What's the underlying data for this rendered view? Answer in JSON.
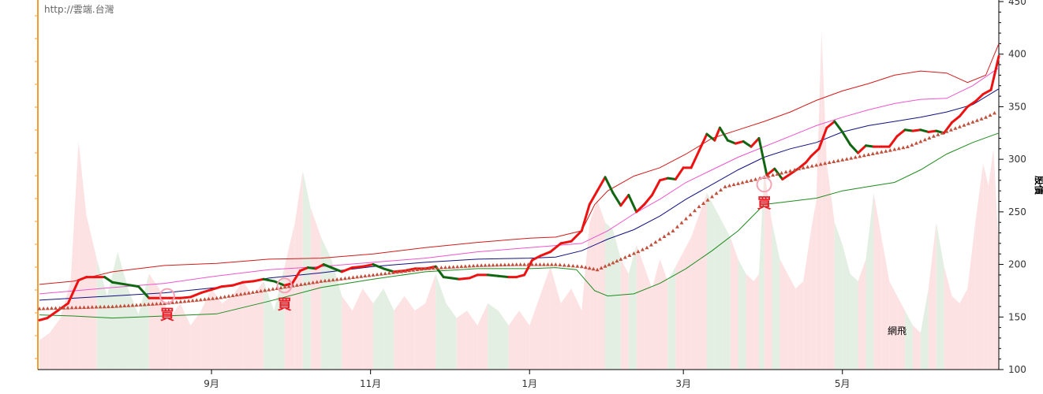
{
  "watermark": "http://雲端.台灣",
  "chart_data": {
    "type": "line",
    "ylabel": "股價",
    "ylim": [
      100,
      450
    ],
    "yticks": [
      100,
      150,
      200,
      250,
      300,
      350,
      400,
      450
    ],
    "xticks": [
      {
        "label": "9月",
        "x": 38
      },
      {
        "label": "11月",
        "x": 99
      },
      {
        "label": "1月",
        "x": 160
      },
      {
        "label": "3月",
        "x": 219
      },
      {
        "label": "5月",
        "x": 280
      }
    ],
    "xlim": [
      -28,
      340
    ],
    "annotation": "網飛",
    "buy_signals": [
      {
        "label": "買",
        "x": 21,
        "y": 170
      },
      {
        "label": "買",
        "x": 66,
        "y": 180
      },
      {
        "label": "買",
        "x": 250,
        "y": 276
      }
    ],
    "price": [
      [
        -28,
        147
      ],
      [
        -25,
        149
      ],
      [
        -21,
        156
      ],
      [
        -17,
        163
      ],
      [
        -13,
        185
      ],
      [
        -10,
        188
      ],
      [
        -7,
        188
      ],
      [
        -3,
        188
      ],
      [
        0,
        183
      ],
      [
        5,
        181
      ],
      [
        10,
        179
      ],
      [
        14,
        168
      ],
      [
        18,
        168
      ],
      [
        22,
        168
      ],
      [
        26,
        168
      ],
      [
        30,
        169
      ],
      [
        34,
        173
      ],
      [
        38,
        176
      ],
      [
        42,
        179
      ],
      [
        46,
        180
      ],
      [
        50,
        183
      ],
      [
        54,
        184
      ],
      [
        58,
        186
      ],
      [
        62,
        184
      ],
      [
        66,
        180
      ],
      [
        69,
        182
      ],
      [
        72,
        194
      ],
      [
        75,
        197
      ],
      [
        78,
        196
      ],
      [
        81,
        200
      ],
      [
        84,
        197
      ],
      [
        88,
        193
      ],
      [
        92,
        197
      ],
      [
        96,
        198
      ],
      [
        100,
        200
      ],
      [
        104,
        196
      ],
      [
        108,
        193
      ],
      [
        112,
        194
      ],
      [
        116,
        196
      ],
      [
        120,
        196
      ],
      [
        124,
        198
      ],
      [
        127,
        188
      ],
      [
        130,
        187
      ],
      [
        133,
        186
      ],
      [
        137,
        187
      ],
      [
        140,
        190
      ],
      [
        144,
        190
      ],
      [
        148,
        189
      ],
      [
        152,
        188
      ],
      [
        155,
        188
      ],
      [
        158,
        190
      ],
      [
        161,
        204
      ],
      [
        164,
        208
      ],
      [
        168,
        212
      ],
      [
        172,
        220
      ],
      [
        176,
        222
      ],
      [
        180,
        232
      ],
      [
        183,
        257
      ],
      [
        186,
        270
      ],
      [
        189,
        283
      ],
      [
        192,
        268
      ],
      [
        195,
        256
      ],
      [
        198,
        266
      ],
      [
        201,
        250
      ],
      [
        204,
        257
      ],
      [
        207,
        266
      ],
      [
        210,
        280
      ],
      [
        213,
        282
      ],
      [
        216,
        281
      ],
      [
        219,
        292
      ],
      [
        222,
        292
      ],
      [
        225,
        308
      ],
      [
        228,
        324
      ],
      [
        231,
        318
      ],
      [
        233,
        330
      ],
      [
        236,
        318
      ],
      [
        239,
        315
      ],
      [
        242,
        317
      ],
      [
        245,
        312
      ],
      [
        248,
        320
      ],
      [
        251,
        285
      ],
      [
        254,
        291
      ],
      [
        257,
        281
      ],
      [
        260,
        286
      ],
      [
        263,
        291
      ],
      [
        266,
        297
      ],
      [
        268,
        303
      ],
      [
        271,
        310
      ],
      [
        274,
        330
      ],
      [
        277,
        336
      ],
      [
        280,
        326
      ],
      [
        283,
        314
      ],
      [
        286,
        306
      ],
      [
        289,
        313
      ],
      [
        292,
        312
      ],
      [
        295,
        312
      ],
      [
        298,
        312
      ],
      [
        301,
        322
      ],
      [
        304,
        328
      ],
      [
        307,
        327
      ],
      [
        310,
        328
      ],
      [
        313,
        326
      ],
      [
        316,
        327
      ],
      [
        319,
        325
      ],
      [
        322,
        335
      ],
      [
        325,
        341
      ],
      [
        328,
        350
      ],
      [
        331,
        355
      ],
      [
        334,
        362
      ],
      [
        337,
        366
      ],
      [
        340,
        398
      ]
    ],
    "upper_band": [
      [
        -28,
        181
      ],
      [
        -15,
        184
      ],
      [
        0,
        193
      ],
      [
        20,
        199
      ],
      [
        40,
        201
      ],
      [
        60,
        205
      ],
      [
        80,
        206
      ],
      [
        100,
        210
      ],
      [
        120,
        216
      ],
      [
        140,
        221
      ],
      [
        160,
        225
      ],
      [
        170,
        226
      ],
      [
        180,
        232
      ],
      [
        185,
        257
      ],
      [
        190,
        270
      ],
      [
        200,
        284
      ],
      [
        210,
        292
      ],
      [
        220,
        305
      ],
      [
        230,
        320
      ],
      [
        240,
        328
      ],
      [
        250,
        336
      ],
      [
        260,
        345
      ],
      [
        270,
        356
      ],
      [
        280,
        365
      ],
      [
        290,
        372
      ],
      [
        300,
        380
      ],
      [
        310,
        384
      ],
      [
        320,
        382
      ],
      [
        328,
        373
      ],
      [
        335,
        380
      ],
      [
        340,
        410
      ]
    ],
    "mid_pink": [
      [
        -28,
        172
      ],
      [
        0,
        178
      ],
      [
        20,
        182
      ],
      [
        40,
        189
      ],
      [
        60,
        195
      ],
      [
        80,
        198
      ],
      [
        100,
        202
      ],
      [
        120,
        206
      ],
      [
        140,
        212
      ],
      [
        160,
        216
      ],
      [
        170,
        218
      ],
      [
        180,
        220
      ],
      [
        190,
        232
      ],
      [
        200,
        248
      ],
      [
        210,
        262
      ],
      [
        220,
        278
      ],
      [
        230,
        290
      ],
      [
        240,
        302
      ],
      [
        250,
        312
      ],
      [
        260,
        322
      ],
      [
        270,
        332
      ],
      [
        280,
        340
      ],
      [
        290,
        347
      ],
      [
        300,
        353
      ],
      [
        310,
        357
      ],
      [
        320,
        358
      ],
      [
        330,
        370
      ],
      [
        340,
        387
      ]
    ],
    "ma_blue": [
      [
        -28,
        166
      ],
      [
        0,
        170
      ],
      [
        20,
        173
      ],
      [
        40,
        178
      ],
      [
        60,
        187
      ],
      [
        80,
        192
      ],
      [
        100,
        198
      ],
      [
        120,
        202
      ],
      [
        140,
        205
      ],
      [
        160,
        206
      ],
      [
        170,
        207
      ],
      [
        180,
        213
      ],
      [
        190,
        224
      ],
      [
        200,
        233
      ],
      [
        210,
        246
      ],
      [
        220,
        262
      ],
      [
        230,
        276
      ],
      [
        240,
        290
      ],
      [
        250,
        302
      ],
      [
        260,
        310
      ],
      [
        270,
        316
      ],
      [
        280,
        326
      ],
      [
        290,
        332
      ],
      [
        300,
        336
      ],
      [
        310,
        340
      ],
      [
        320,
        345
      ],
      [
        330,
        352
      ],
      [
        340,
        367
      ]
    ],
    "lower_band": [
      [
        -28,
        152
      ],
      [
        -15,
        151
      ],
      [
        0,
        149
      ],
      [
        20,
        151
      ],
      [
        40,
        153
      ],
      [
        60,
        165
      ],
      [
        80,
        178
      ],
      [
        100,
        186
      ],
      [
        120,
        193
      ],
      [
        140,
        196
      ],
      [
        160,
        196
      ],
      [
        170,
        197
      ],
      [
        178,
        195
      ],
      [
        185,
        175
      ],
      [
        190,
        170
      ],
      [
        200,
        172
      ],
      [
        210,
        182
      ],
      [
        220,
        196
      ],
      [
        230,
        213
      ],
      [
        240,
        232
      ],
      [
        250,
        257
      ],
      [
        260,
        260
      ],
      [
        270,
        263
      ],
      [
        280,
        270
      ],
      [
        290,
        274
      ],
      [
        300,
        278
      ],
      [
        310,
        290
      ],
      [
        320,
        305
      ],
      [
        330,
        316
      ],
      [
        340,
        325
      ]
    ],
    "trailing_stop": [
      [
        -28,
        158
      ],
      [
        0,
        160
      ],
      [
        20,
        163
      ],
      [
        40,
        168
      ],
      [
        60,
        176
      ],
      [
        80,
        184
      ],
      [
        100,
        190
      ],
      [
        120,
        196
      ],
      [
        140,
        199
      ],
      [
        155,
        200
      ],
      [
        170,
        200
      ],
      [
        180,
        198
      ],
      [
        186,
        195
      ],
      [
        195,
        205
      ],
      [
        205,
        216
      ],
      [
        215,
        232
      ],
      [
        225,
        255
      ],
      [
        235,
        274
      ],
      [
        245,
        280
      ],
      [
        255,
        286
      ],
      [
        265,
        292
      ],
      [
        275,
        297
      ],
      [
        285,
        302
      ],
      [
        295,
        307
      ],
      [
        305,
        312
      ],
      [
        315,
        322
      ],
      [
        325,
        331
      ],
      [
        335,
        340
      ],
      [
        340,
        346
      ]
    ],
    "volume": [
      [
        -28,
        8
      ],
      [
        -24,
        10
      ],
      [
        -20,
        14
      ],
      [
        -16,
        24
      ],
      [
        -13,
        62
      ],
      [
        -10,
        42
      ],
      [
        -6,
        30
      ],
      [
        -2,
        20
      ],
      [
        2,
        32
      ],
      [
        6,
        22
      ],
      [
        10,
        15
      ],
      [
        14,
        26
      ],
      [
        18,
        22
      ],
      [
        22,
        14
      ],
      [
        26,
        18
      ],
      [
        30,
        12
      ],
      [
        34,
        16
      ],
      [
        38,
        22
      ],
      [
        42,
        18
      ],
      [
        46,
        20
      ],
      [
        50,
        24
      ],
      [
        54,
        20
      ],
      [
        58,
        24
      ],
      [
        62,
        16
      ],
      [
        66,
        28
      ],
      [
        70,
        40
      ],
      [
        73,
        54
      ],
      [
        76,
        44
      ],
      [
        80,
        36
      ],
      [
        84,
        30
      ],
      [
        88,
        20
      ],
      [
        92,
        16
      ],
      [
        96,
        22
      ],
      [
        100,
        18
      ],
      [
        104,
        22
      ],
      [
        108,
        16
      ],
      [
        112,
        20
      ],
      [
        116,
        16
      ],
      [
        120,
        18
      ],
      [
        124,
        26
      ],
      [
        128,
        18
      ],
      [
        132,
        14
      ],
      [
        136,
        16
      ],
      [
        140,
        12
      ],
      [
        144,
        18
      ],
      [
        148,
        16
      ],
      [
        152,
        12
      ],
      [
        156,
        16
      ],
      [
        160,
        12
      ],
      [
        164,
        20
      ],
      [
        168,
        28
      ],
      [
        172,
        18
      ],
      [
        176,
        22
      ],
      [
        180,
        16
      ],
      [
        183,
        40
      ],
      [
        186,
        46
      ],
      [
        189,
        40
      ],
      [
        192,
        38
      ],
      [
        195,
        30
      ],
      [
        198,
        26
      ],
      [
        201,
        34
      ],
      [
        204,
        28
      ],
      [
        207,
        22
      ],
      [
        210,
        30
      ],
      [
        213,
        24
      ],
      [
        216,
        28
      ],
      [
        219,
        32
      ],
      [
        222,
        36
      ],
      [
        225,
        42
      ],
      [
        228,
        48
      ],
      [
        231,
        44
      ],
      [
        234,
        40
      ],
      [
        237,
        36
      ],
      [
        240,
        30
      ],
      [
        243,
        26
      ],
      [
        246,
        24
      ],
      [
        248,
        26
      ],
      [
        250,
        54
      ],
      [
        253,
        40
      ],
      [
        256,
        30
      ],
      [
        259,
        26
      ],
      [
        262,
        22
      ],
      [
        265,
        24
      ],
      [
        268,
        38
      ],
      [
        270,
        46
      ],
      [
        272,
        92
      ],
      [
        274,
        56
      ],
      [
        277,
        40
      ],
      [
        280,
        34
      ],
      [
        283,
        26
      ],
      [
        286,
        24
      ],
      [
        289,
        30
      ],
      [
        292,
        48
      ],
      [
        295,
        36
      ],
      [
        298,
        24
      ],
      [
        301,
        20
      ],
      [
        304,
        16
      ],
      [
        307,
        12
      ],
      [
        310,
        10
      ],
      [
        313,
        22
      ],
      [
        316,
        40
      ],
      [
        319,
        28
      ],
      [
        322,
        20
      ],
      [
        325,
        18
      ],
      [
        328,
        22
      ],
      [
        331,
        40
      ],
      [
        334,
        56
      ],
      [
        336,
        50
      ],
      [
        338,
        60
      ],
      [
        340,
        32
      ]
    ]
  }
}
